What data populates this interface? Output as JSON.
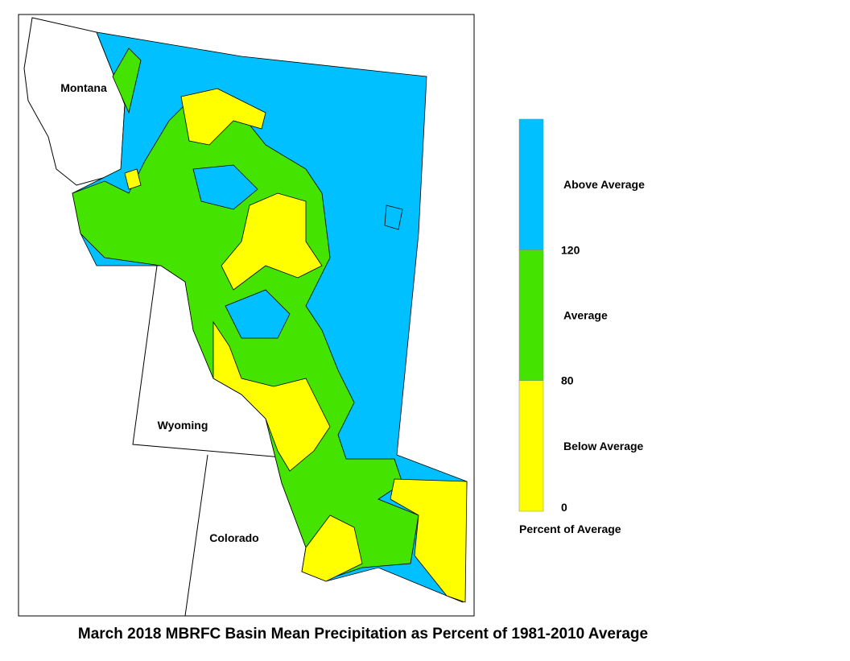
{
  "map": {
    "title": "March 2018 MBRFC Basin Mean Precipitation as Percent of 1981-2010 Average",
    "states": [
      "Montana",
      "Wyoming",
      "Colorado"
    ]
  },
  "legend": {
    "title": "Percent of Average",
    "classes": [
      {
        "label": "Below Average",
        "color": "#ffff00"
      },
      {
        "label": "Average",
        "color": "#44e400"
      },
      {
        "label": "Above Average",
        "color": "#00c0ff"
      }
    ],
    "ticks": [
      0,
      80,
      120
    ]
  }
}
